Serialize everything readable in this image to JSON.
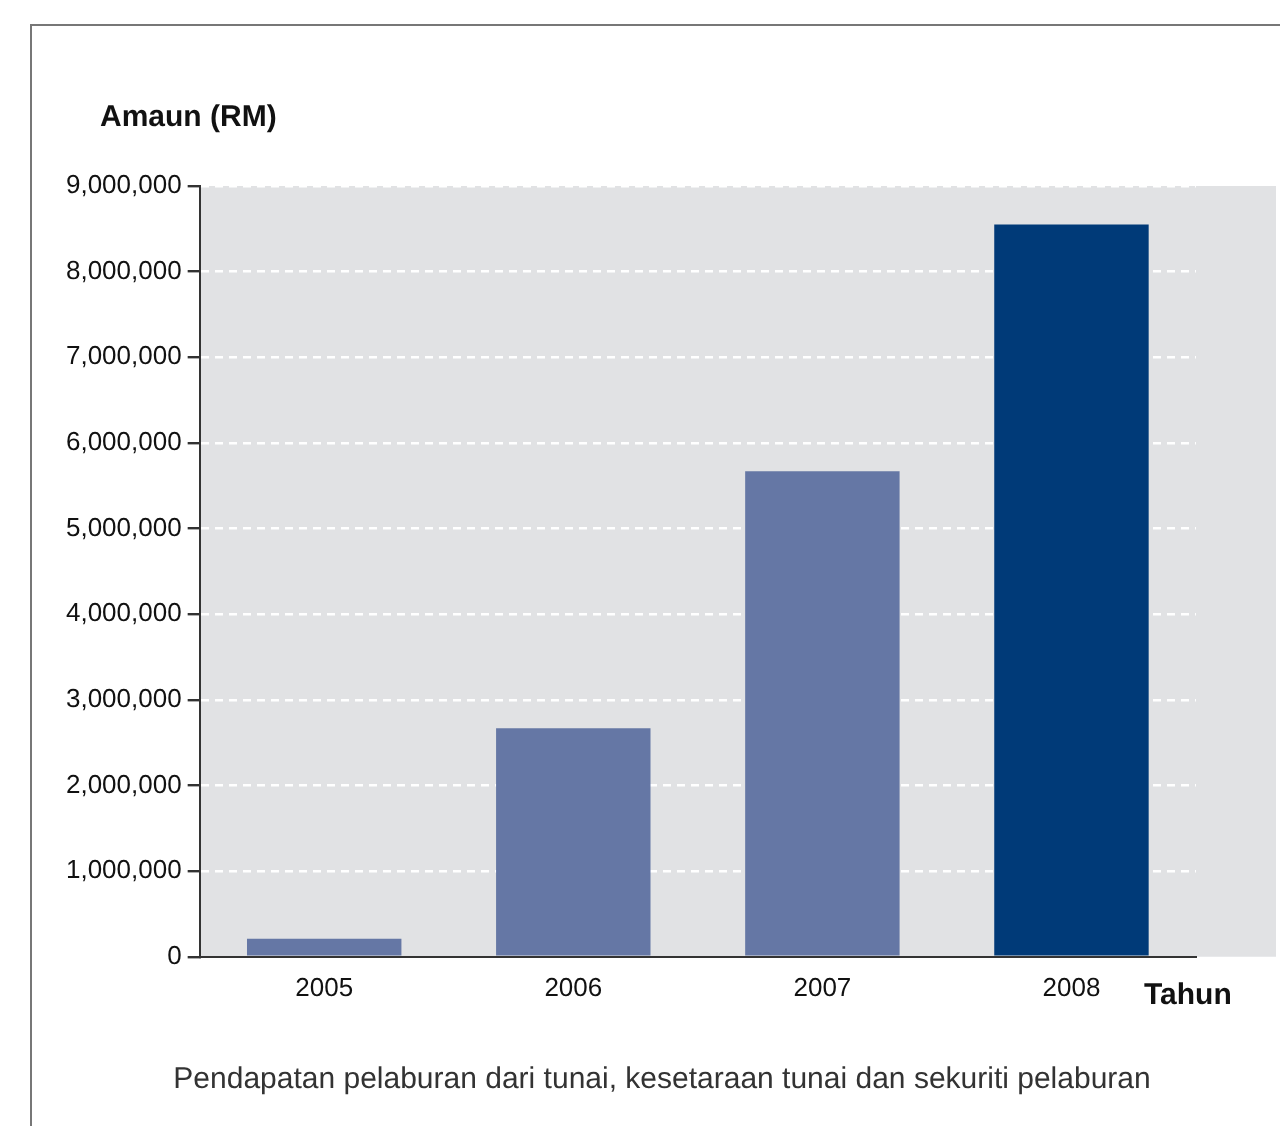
{
  "chart_data": {
    "type": "bar",
    "ylabel": "Amaun (RM)",
    "xlabel": "Tahun",
    "categories": [
      "2005",
      "2006",
      "2007",
      "2008"
    ],
    "values": [
      210000,
      2670000,
      5670000,
      8550000
    ],
    "colors": [
      "#6577a5",
      "#6577a5",
      "#6577a5",
      "#003a78"
    ],
    "ylim": [
      0,
      9000000
    ],
    "yticks": [
      {
        "value": 0,
        "label": "0"
      },
      {
        "value": 1000000,
        "label": "1,000,000"
      },
      {
        "value": 2000000,
        "label": "2,000,000"
      },
      {
        "value": 3000000,
        "label": "3,000,000"
      },
      {
        "value": 4000000,
        "label": "4,000,000"
      },
      {
        "value": 5000000,
        "label": "5,000,000"
      },
      {
        "value": 6000000,
        "label": "6,000,000"
      },
      {
        "value": 7000000,
        "label": "7,000,000"
      },
      {
        "value": 8000000,
        "label": "8,000,000"
      },
      {
        "value": 9000000,
        "label": "9,000,000"
      }
    ],
    "grid": "y",
    "annotations": [
      "Pendapatan pelaburan dari tunai, kesetaraan tunai dan sekuriti pelaburan"
    ]
  }
}
